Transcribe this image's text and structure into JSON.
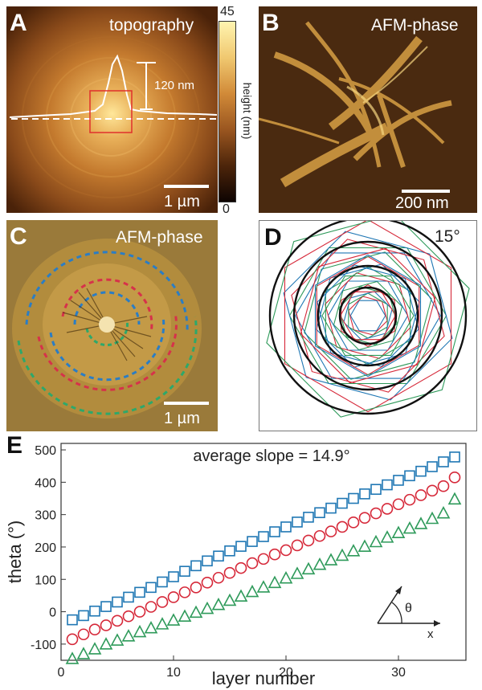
{
  "panelA": {
    "label": "A",
    "title": "topography",
    "profile_annotation": "120 nm",
    "scale_bar": "1 µm",
    "colorbar": {
      "max": "45",
      "min": "0",
      "label": "height (nm)"
    }
  },
  "panelB": {
    "label": "B",
    "title": "AFM-phase",
    "scale_bar": "200 nm"
  },
  "panelC": {
    "label": "C",
    "title": "AFM-phase",
    "scale_bar": "1 µm"
  },
  "panelD": {
    "label": "D",
    "angle": "15°"
  },
  "panelE": {
    "label": "E"
  },
  "colors": {
    "blue": "#1f77b4",
    "red": "#d62839",
    "green": "#2e9a5a"
  },
  "chart_data": {
    "type": "scatter",
    "title": "average slope = 14.9°",
    "xlabel": "layer number",
    "ylabel": "theta (°)",
    "xlim": [
      0,
      36
    ],
    "ylim": [
      -150,
      520
    ],
    "xticks": [
      0,
      10,
      20,
      30
    ],
    "yticks": [
      -100,
      0,
      100,
      200,
      300,
      400,
      500
    ],
    "inset": {
      "angle_label": "θ",
      "axis_label": "x"
    },
    "series": [
      {
        "marker": "square",
        "color": "#1f77b4",
        "x": [
          1,
          2,
          3,
          4,
          5,
          6,
          7,
          8,
          9,
          10,
          11,
          12,
          13,
          14,
          15,
          16,
          17,
          18,
          19,
          20,
          21,
          22,
          23,
          24,
          25,
          26,
          27,
          28,
          29,
          30,
          31,
          32,
          33,
          34,
          35
        ],
        "y": [
          -25,
          -12,
          2,
          16,
          30,
          45,
          60,
          75,
          92,
          108,
          125,
          142,
          157,
          172,
          188,
          202,
          217,
          232,
          247,
          262,
          277,
          292,
          306,
          320,
          335,
          350,
          364,
          378,
          392,
          406,
          420,
          434,
          448,
          463,
          478
        ]
      },
      {
        "marker": "circle",
        "color": "#d62839",
        "x": [
          1,
          2,
          3,
          4,
          5,
          6,
          7,
          8,
          9,
          10,
          11,
          12,
          13,
          14,
          15,
          16,
          17,
          18,
          19,
          20,
          21,
          22,
          23,
          24,
          25,
          26,
          27,
          28,
          29,
          30,
          31,
          32,
          33,
          34,
          35
        ],
        "y": [
          -85,
          -70,
          -55,
          -42,
          -28,
          -14,
          0,
          15,
          30,
          45,
          60,
          75,
          90,
          105,
          120,
          135,
          150,
          163,
          177,
          190,
          205,
          220,
          234,
          248,
          262,
          276,
          290,
          304,
          318,
          332,
          346,
          360,
          374,
          388,
          415
        ]
      },
      {
        "marker": "triangle",
        "color": "#2e9a5a",
        "x": [
          1,
          2,
          3,
          4,
          5,
          6,
          7,
          8,
          9,
          10,
          11,
          12,
          13,
          14,
          15,
          16,
          17,
          18,
          19,
          20,
          21,
          22,
          23,
          24,
          25,
          26,
          27,
          28,
          29,
          30,
          31,
          32,
          33,
          34,
          35
        ],
        "y": [
          -145,
          -130,
          -115,
          -100,
          -88,
          -75,
          -62,
          -50,
          -38,
          -26,
          -14,
          -2,
          10,
          22,
          35,
          48,
          62,
          76,
          90,
          104,
          118,
          132,
          146,
          160,
          174,
          188,
          202,
          216,
          230,
          244,
          258,
          272,
          288,
          305,
          348
        ]
      }
    ]
  }
}
